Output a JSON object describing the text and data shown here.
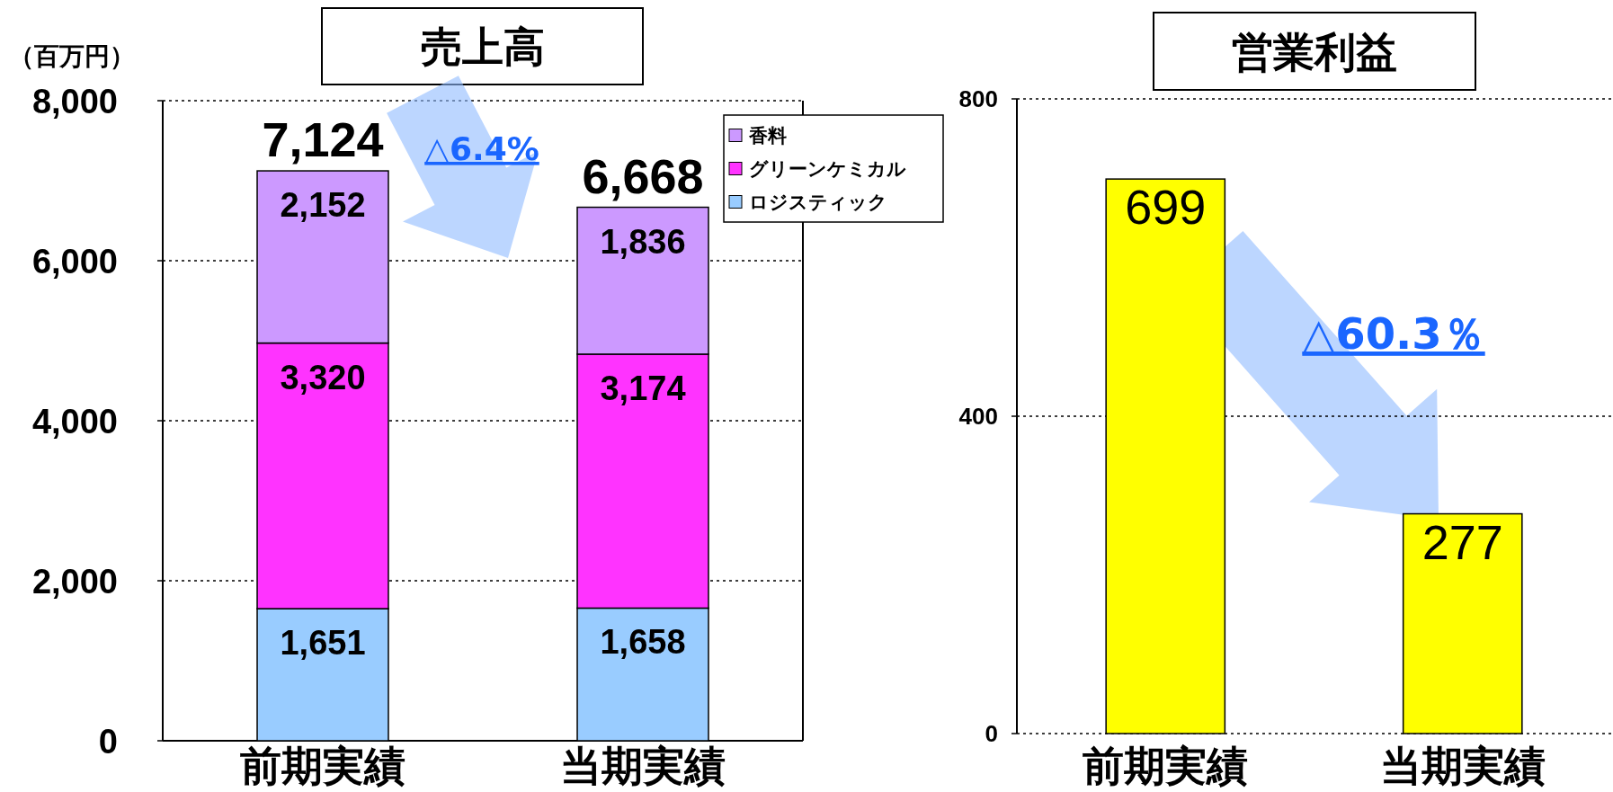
{
  "chart_data": [
    {
      "type": "bar",
      "title": "売上高",
      "ylabel": "（百万円）",
      "categories": [
        "前期実績",
        "当期実績"
      ],
      "stacked": true,
      "series": [
        {
          "name": "ロジスティック",
          "color": "#99ccff",
          "values": [
            1651,
            1658
          ],
          "value_labels": [
            "1,651",
            "1,658"
          ]
        },
        {
          "name": "グリーンケミカル",
          "color": "#ff33ff",
          "values": [
            3320,
            3174
          ],
          "value_labels": [
            "3,320",
            "3,174"
          ]
        },
        {
          "name": "香料",
          "color": "#cc99ff",
          "values": [
            2152,
            1836
          ],
          "value_labels": [
            "2,152",
            "1,836"
          ]
        }
      ],
      "ylim": [
        0,
        8000
      ],
      "yticks": [
        0,
        {
          "value": 2000,
          "label": "2,000"
        },
        {
          "value": 4000,
          "label": "4,000"
        },
        {
          "value": 6000,
          "label": "6,000"
        },
        {
          "value": 8000,
          "label": "8,000"
        }
      ],
      "grid": "y",
      "legend": "top right",
      "totals": [
        "7,124",
        "6,668"
      ],
      "annotations": [
        "△6.4%"
      ]
    },
    {
      "type": "bar",
      "title": "営業利益",
      "categories": [
        "前期実績",
        "当期実績"
      ],
      "values": [
        699,
        277
      ],
      "color": "#ffff00",
      "ylim": [
        0,
        800
      ],
      "yticks": [
        0,
        400,
        800
      ],
      "grid": "y",
      "data_labels": true,
      "annotations": [
        "△60.3％"
      ]
    }
  ]
}
